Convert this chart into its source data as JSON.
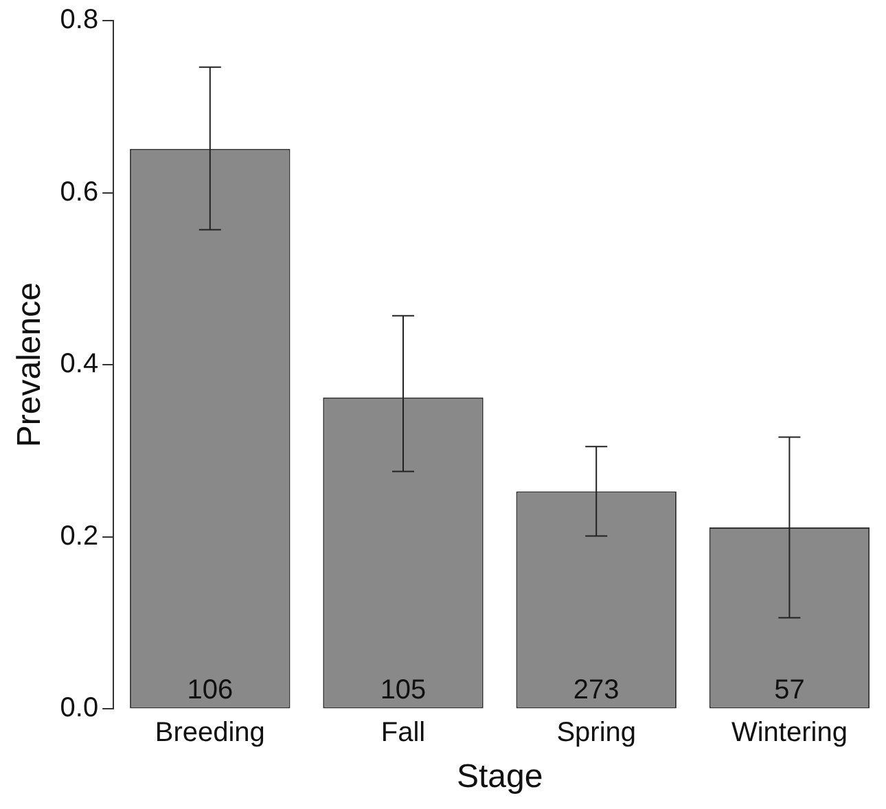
{
  "chart_data": {
    "type": "bar",
    "xlabel": "Stage",
    "ylabel": "Prevalence",
    "categories": [
      "Breeding",
      "Fall",
      "Spring",
      "Wintering"
    ],
    "values": [
      0.651,
      0.362,
      0.253,
      0.211
    ],
    "color": "#898989",
    "errors": [
      [
        0.557,
        0.746
      ],
      [
        0.276,
        0.457
      ],
      [
        0.201,
        0.305
      ],
      [
        0.106,
        0.316
      ]
    ],
    "annotations": [
      "106",
      "105",
      "273",
      "57"
    ],
    "ylim": [
      0,
      0.8
    ],
    "yticks": [
      {
        "value": 0,
        "label": "0.0"
      },
      0.2,
      0.4,
      0.6,
      0.8
    ],
    "grid": false,
    "legend": false
  }
}
